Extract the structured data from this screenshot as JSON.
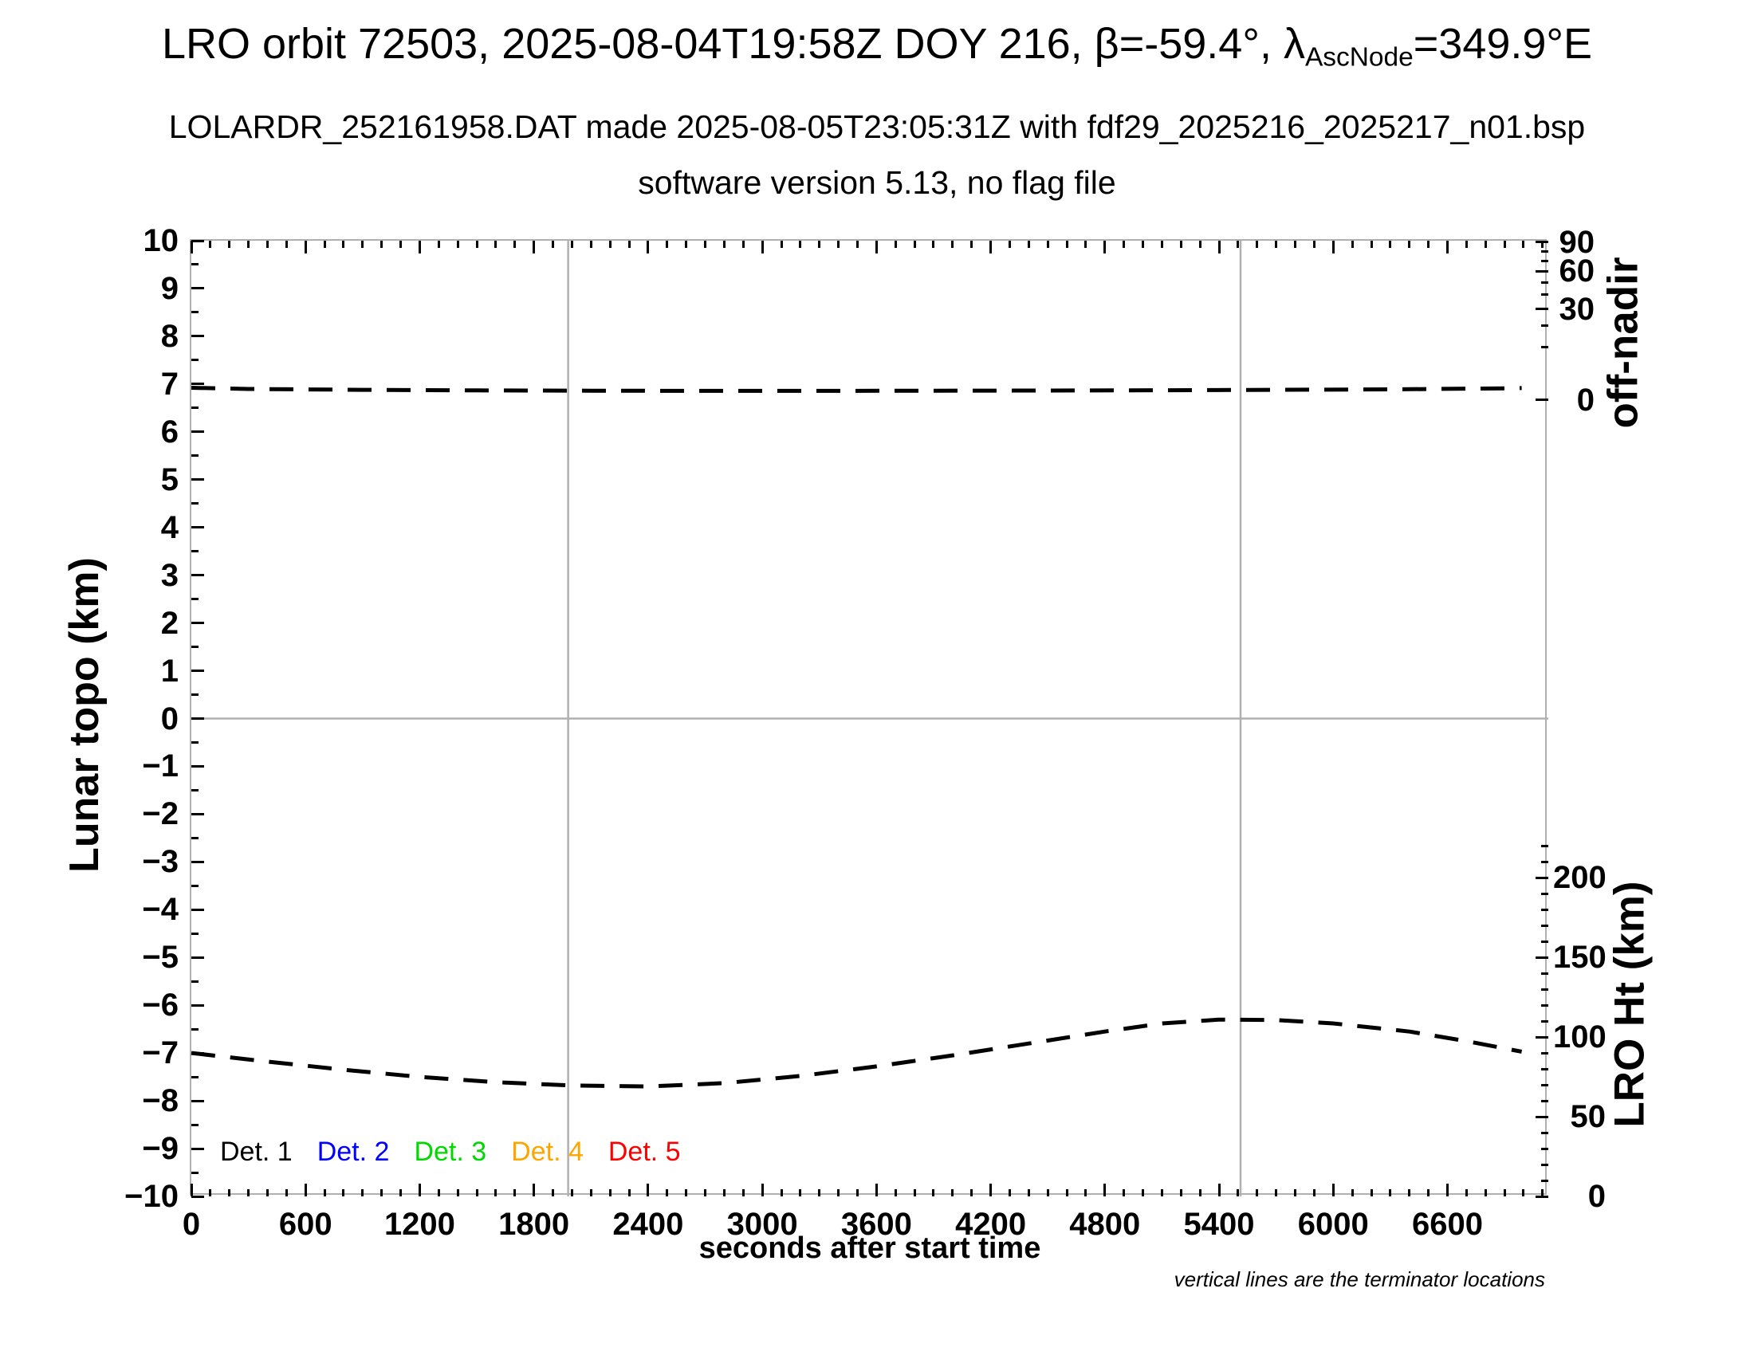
{
  "title": {
    "prefix": "LRO orbit 72503, 2025-08-04T19:58Z DOY 216, β=-59.4°, λ",
    "lambda_subscript": "AscNode",
    "suffix": "=349.9°E"
  },
  "subtitle": "LOLARDR_252161958.DAT made 2025-08-05T23:05:31Z with fdf29_2025216_2025217_n01.bsp",
  "subtitle2": "software version 5.13, no flag file",
  "footnote": "vertical lines are the terminator locations",
  "legend": {
    "items": [
      {
        "label": "Det. 1",
        "color": "#000000"
      },
      {
        "label": "Det. 2",
        "color": "#0000ff"
      },
      {
        "label": "Det. 3",
        "color": "#00d900"
      },
      {
        "label": "Det. 4",
        "color": "#ffa500"
      },
      {
        "label": "Det. 5",
        "color": "#ff0000"
      }
    ]
  },
  "colors": {
    "frame": "#b0b0b0",
    "reference_lines": "#b0b0b0",
    "series": "#000000"
  },
  "chart_data": {
    "type": "line",
    "title": "LRO orbit 72503, 2025-08-04T19:58Z DOY 216, β=-59.4°, λ_AscNode=349.9°E",
    "xlabel": "seconds after start time",
    "x_range_s": [
      0,
      7130
    ],
    "x_major_tick_s": 600,
    "x_minor_tick_s": 100,
    "x_last_labeled_tick_s": 6600,
    "left_axis": {
      "label": "Lunar topo (km)",
      "range": [
        -10,
        10
      ],
      "major_tick": 1,
      "minor_tick": 0.5
    },
    "right_top_axis": {
      "label": "off-nadir",
      "tick_labels_deg": [
        90,
        60,
        30,
        0
      ],
      "minor_tick_deg": 10
    },
    "right_bottom_axis": {
      "label": "LRO Ht (km)",
      "tick_labels_km": [
        200,
        150,
        100,
        50,
        0
      ],
      "minor_tick_km": 10,
      "minor_tick_max_km": 220,
      "km_per_full_height": 600
    },
    "grid": {
      "horizontal_line_at_topo_km": 0
    },
    "terminator_lines_s": [
      1980,
      5513
    ],
    "series": [
      {
        "name": "off-nadir angle",
        "axis": "right_top",
        "line_style": "dashed",
        "color": "#000000",
        "x_s": [
          0,
          300,
          900,
          1500,
          2100,
          2700,
          3300,
          3900,
          4500,
          5100,
          5700,
          6300,
          6900,
          6990
        ],
        "deg": [
          0.55,
          0.45,
          0.38,
          0.34,
          0.32,
          0.31,
          0.31,
          0.32,
          0.33,
          0.35,
          0.38,
          0.42,
          0.5,
          0.52
        ]
      },
      {
        "name": "LRO height",
        "axis": "right_bottom",
        "line_style": "dashed",
        "color": "#000000",
        "x_s": [
          0,
          400,
          800,
          1200,
          1600,
          2000,
          2400,
          2800,
          3200,
          3600,
          4000,
          4400,
          4800,
          5100,
          5400,
          5700,
          6000,
          6400,
          6700,
          6990
        ],
        "km": [
          90.0,
          84.6,
          79.5,
          75.0,
          71.7,
          69.6,
          69.0,
          71.1,
          75.6,
          81.6,
          88.5,
          96.0,
          103.5,
          108.6,
          111.0,
          110.7,
          108.6,
          103.5,
          97.5,
          90.9
        ]
      }
    ],
    "detector_legend": [
      "Det. 1",
      "Det. 2",
      "Det. 3",
      "Det. 4",
      "Det. 5"
    ]
  }
}
